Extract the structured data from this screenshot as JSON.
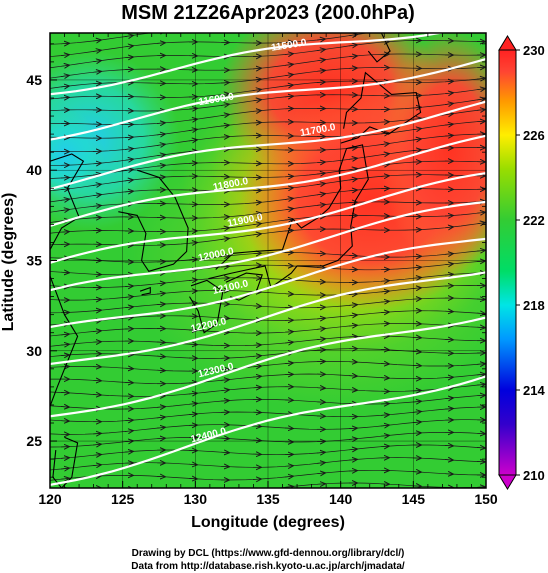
{
  "chart_data": {
    "type": "heatmap",
    "title": "MSM 21Z26Apr2023 (200.0hPa)",
    "xlabel": "Longitude (degrees)",
    "ylabel": "Latitude  (degrees)",
    "xlim": [
      120,
      150
    ],
    "ylim": [
      22.4,
      47.6
    ],
    "x_ticks": [
      120,
      125,
      130,
      135,
      140,
      145,
      150
    ],
    "y_ticks": [
      25,
      30,
      35,
      40,
      45
    ],
    "x_tick_labels": [
      "120",
      "125",
      "130",
      "135",
      "140",
      "145",
      "150"
    ],
    "y_tick_labels": [
      "25",
      "30",
      "35",
      "40",
      "45"
    ],
    "grid": true,
    "colorbar": {
      "min": 210,
      "max": 230,
      "ticks": [
        210,
        214,
        218,
        222,
        226,
        230
      ],
      "tick_labels": [
        "210",
        "214",
        "218",
        "222",
        "226",
        "230"
      ],
      "colors": [
        "#cc00cc",
        "#0000cc",
        "#0099ff",
        "#00e5e5",
        "#33cc33",
        "#99dd00",
        "#ffee00",
        "#ff9900",
        "#ff4433",
        "#ff2222"
      ]
    },
    "contours": [
      {
        "label": "11500.0",
        "label_lon": 136.5,
        "label_lat": 46.6
      },
      {
        "label": "11600.0",
        "label_lon": 131.5,
        "label_lat": 43.6
      },
      {
        "label": "11700.0",
        "label_lon": 138.5,
        "label_lat": 41.9
      },
      {
        "label": "11800.0",
        "label_lon": 132.5,
        "label_lat": 38.9
      },
      {
        "label": "11900.0",
        "label_lon": 133.5,
        "label_lat": 36.9
      },
      {
        "label": "12000.0",
        "label_lon": 131.5,
        "label_lat": 35.0
      },
      {
        "label": "12100.0",
        "label_lon": 132.5,
        "label_lat": 33.2
      },
      {
        "label": "12200.0",
        "label_lon": 131.0,
        "label_lat": 31.1
      },
      {
        "label": "12300.0",
        "label_lon": 131.5,
        "label_lat": 28.6
      },
      {
        "label": "12400.0",
        "label_lon": 131.0,
        "label_lat": 25.0
      }
    ],
    "wind": "streamlines, predominantly westerly (eastward)"
  },
  "footer": {
    "line1": "Drawing by DCL (https://www.gfd-dennou.org/library/dcl/)",
    "line2": "Data from http://database.rish.kyoto-u.ac.jp/arch/jmadata/"
  },
  "colors": {
    "frame": "#000000",
    "contour": "#ffffff",
    "stream": "#1a1a1a",
    "coast": "#000000"
  }
}
